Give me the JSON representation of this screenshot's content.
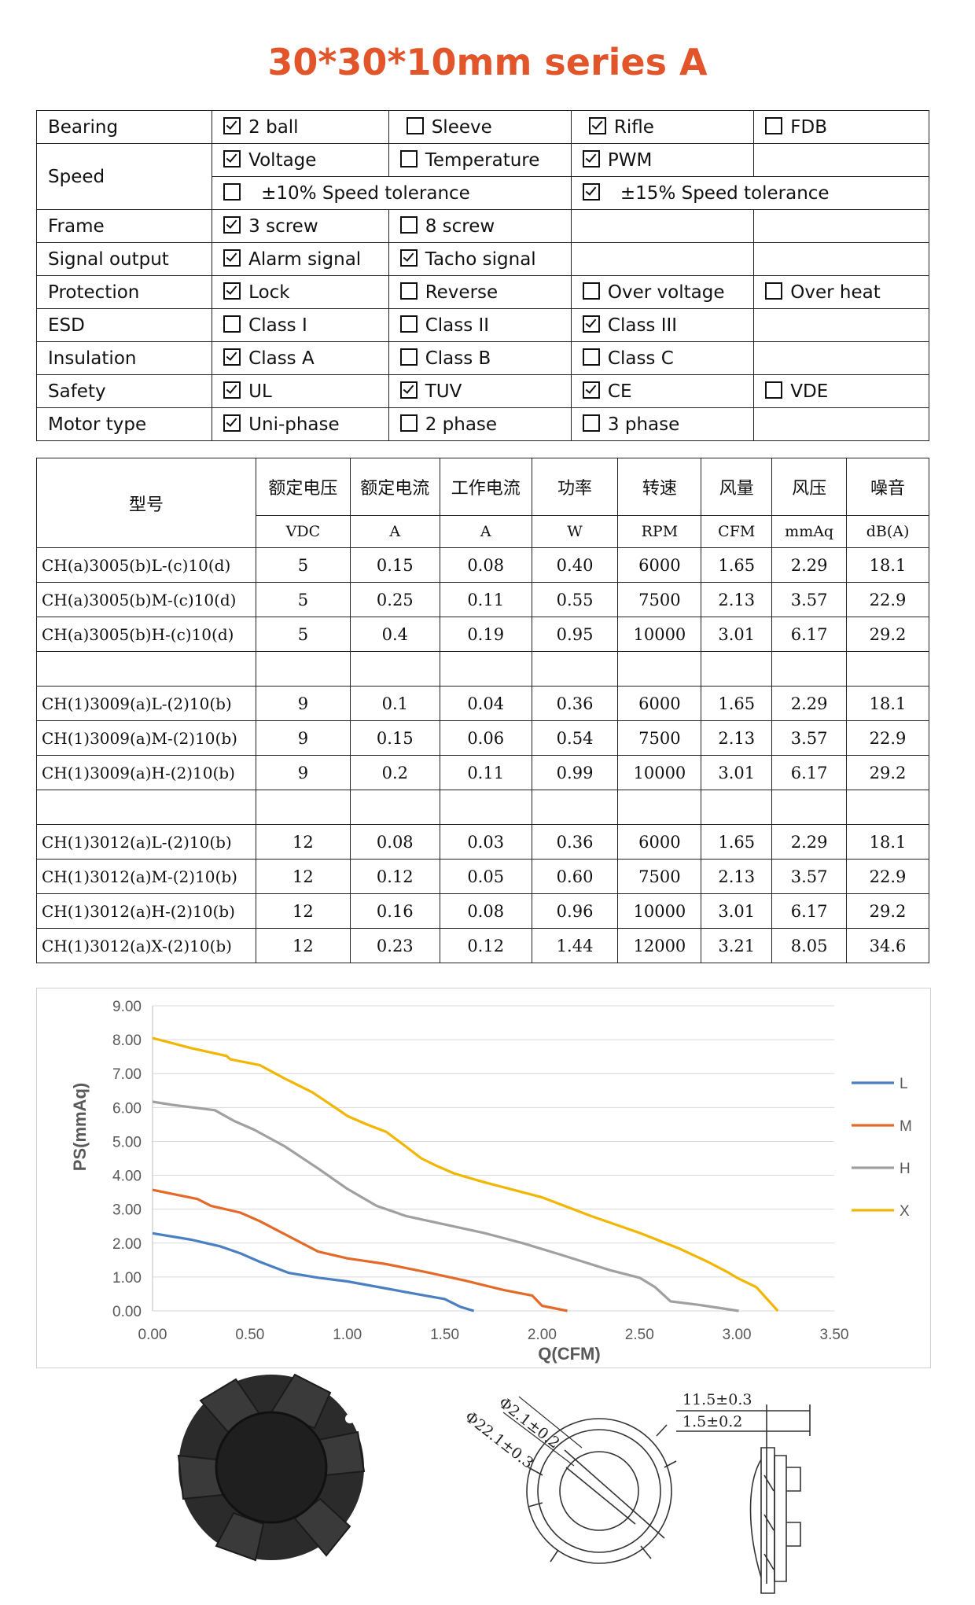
{
  "title": "30*30*10mm series A",
  "spec": {
    "bearing": {
      "label": "Bearing",
      "opts": [
        {
          "text": "2 ball",
          "checked": true
        },
        {
          "text": "Sleeve",
          "checked": false
        },
        {
          "text": "Rifle",
          "checked": true
        },
        {
          "text": "FDB",
          "checked": false
        }
      ]
    },
    "speed": {
      "label": "Speed",
      "row1": [
        {
          "text": "Voltage",
          "checked": true
        },
        {
          "text": "Temperature",
          "checked": false
        },
        {
          "text": "PWM",
          "checked": true
        }
      ],
      "row2": [
        {
          "text": "±10% Speed tolerance",
          "checked": false
        },
        {
          "text": "±15% Speed tolerance",
          "checked": true
        }
      ]
    },
    "frame": {
      "label": "Frame",
      "opts": [
        {
          "text": "3 screw",
          "checked": true
        },
        {
          "text": "8 screw",
          "checked": false
        }
      ]
    },
    "signal": {
      "label": "Signal output",
      "opts": [
        {
          "text": "Alarm signal",
          "checked": true
        },
        {
          "text": "Tacho signal",
          "checked": true
        }
      ]
    },
    "protection": {
      "label": "Protection",
      "opts": [
        {
          "text": "Lock",
          "checked": true
        },
        {
          "text": "Reverse",
          "checked": false
        },
        {
          "text": "Over voltage",
          "checked": false
        },
        {
          "text": "Over heat",
          "checked": false
        }
      ]
    },
    "esd": {
      "label": "ESD",
      "opts": [
        {
          "text": "Class I",
          "checked": false
        },
        {
          "text": "Class II",
          "checked": false
        },
        {
          "text": "Class III",
          "checked": true
        }
      ]
    },
    "insulation": {
      "label": "Insulation",
      "opts": [
        {
          "text": "Class A",
          "checked": true
        },
        {
          "text": "Class B",
          "checked": false
        },
        {
          "text": "Class C",
          "checked": false
        }
      ]
    },
    "safety": {
      "label": "Safety",
      "opts": [
        {
          "text": "UL",
          "checked": true
        },
        {
          "text": "TUV",
          "checked": true
        },
        {
          "text": "CE",
          "checked": true
        },
        {
          "text": "VDE",
          "checked": false
        }
      ]
    },
    "motor": {
      "label": "Motor type",
      "opts": [
        {
          "text": "Uni-phase",
          "checked": true
        },
        {
          "text": "2 phase",
          "checked": false
        },
        {
          "text": "3 phase",
          "checked": false
        }
      ]
    }
  },
  "models": {
    "model_header": "型号",
    "headers": [
      "额定电压",
      "额定电流",
      "工作电流",
      "功率",
      "转速",
      "风量",
      "风压",
      "噪音"
    ],
    "units": [
      "VDC",
      "A",
      "A",
      "W",
      "RPM",
      "CFM",
      "mmAq",
      "dB(A)"
    ],
    "groups": [
      [
        [
          "CH(a)3005(b)L-(c)10(d)",
          "5",
          "0.15",
          "0.08",
          "0.40",
          "6000",
          "1.65",
          "2.29",
          "18.1"
        ],
        [
          "CH(a)3005(b)M-(c)10(d)",
          "5",
          "0.25",
          "0.11",
          "0.55",
          "7500",
          "2.13",
          "3.57",
          "22.9"
        ],
        [
          "CH(a)3005(b)H-(c)10(d)",
          "5",
          "0.4",
          "0.19",
          "0.95",
          "10000",
          "3.01",
          "6.17",
          "29.2"
        ]
      ],
      [
        [
          "CH(1)3009(a)L-(2)10(b)",
          "9",
          "0.1",
          "0.04",
          "0.36",
          "6000",
          "1.65",
          "2.29",
          "18.1"
        ],
        [
          "CH(1)3009(a)M-(2)10(b)",
          "9",
          "0.15",
          "0.06",
          "0.54",
          "7500",
          "2.13",
          "3.57",
          "22.9"
        ],
        [
          "CH(1)3009(a)H-(2)10(b)",
          "9",
          "0.2",
          "0.11",
          "0.99",
          "10000",
          "3.01",
          "6.17",
          "29.2"
        ]
      ],
      [
        [
          "CH(1)3012(a)L-(2)10(b)",
          "12",
          "0.08",
          "0.03",
          "0.36",
          "6000",
          "1.65",
          "2.29",
          "18.1"
        ],
        [
          "CH(1)3012(a)M-(2)10(b)",
          "12",
          "0.12",
          "0.05",
          "0.60",
          "7500",
          "2.13",
          "3.57",
          "22.9"
        ],
        [
          "CH(1)3012(a)H-(2)10(b)",
          "12",
          "0.16",
          "0.08",
          "0.96",
          "10000",
          "3.01",
          "6.17",
          "29.2"
        ],
        [
          "CH(1)3012(a)X-(2)10(b)",
          "12",
          "0.23",
          "0.12",
          "1.44",
          "12000",
          "3.21",
          "8.05",
          "34.6"
        ]
      ]
    ]
  },
  "chart_data": {
    "type": "line",
    "xlabel": "Q(CFM)",
    "ylabel": "PS(mmAq)",
    "xlim": [
      0,
      3.5
    ],
    "ylim": [
      0,
      9
    ],
    "xticks": [
      "0.00",
      "0.50",
      "1.00",
      "1.50",
      "2.00",
      "2.50",
      "3.00",
      "3.50"
    ],
    "yticks": [
      "0.00",
      "1.00",
      "2.00",
      "3.00",
      "4.00",
      "5.00",
      "6.00",
      "7.00",
      "8.00",
      "9.00"
    ],
    "grid": "horizontal",
    "legend": "right",
    "series": [
      {
        "name": "L",
        "color": "#4a7fc1",
        "x": [
          0,
          0.2,
          0.35,
          0.45,
          0.55,
          0.7,
          0.85,
          1.0,
          1.2,
          1.4,
          1.5,
          1.58,
          1.65
        ],
        "y": [
          2.29,
          2.1,
          1.9,
          1.7,
          1.45,
          1.12,
          0.98,
          0.87,
          0.66,
          0.45,
          0.35,
          0.12,
          0
        ]
      },
      {
        "name": "M",
        "color": "#e46a2a",
        "x": [
          0,
          0.23,
          0.3,
          0.45,
          0.55,
          0.7,
          0.85,
          1.0,
          1.2,
          1.4,
          1.6,
          1.8,
          1.95,
          2.0,
          2.13
        ],
        "y": [
          3.57,
          3.3,
          3.1,
          2.9,
          2.65,
          2.2,
          1.75,
          1.55,
          1.38,
          1.15,
          0.9,
          0.62,
          0.45,
          0.15,
          0
        ]
      },
      {
        "name": "H",
        "color": "#a0a0a0",
        "x": [
          0,
          0.1,
          0.32,
          0.42,
          0.52,
          0.68,
          0.85,
          1.0,
          1.15,
          1.3,
          1.5,
          1.7,
          1.9,
          2.1,
          2.35,
          2.5,
          2.58,
          2.66,
          2.8,
          3.01
        ],
        "y": [
          6.17,
          6.08,
          5.92,
          5.6,
          5.35,
          4.85,
          4.2,
          3.6,
          3.1,
          2.8,
          2.55,
          2.3,
          2.0,
          1.65,
          1.2,
          0.98,
          0.7,
          0.28,
          0.18,
          0
        ]
      },
      {
        "name": "X",
        "color": "#f2b600",
        "x": [
          0,
          0.2,
          0.38,
          0.4,
          0.55,
          0.68,
          0.82,
          0.95,
          1.0,
          1.1,
          1.2,
          1.3,
          1.38,
          1.45,
          1.55,
          1.7,
          2.0,
          2.25,
          2.5,
          2.7,
          2.85,
          2.95,
          3.0,
          3.1,
          3.21
        ],
        "y": [
          8.05,
          7.75,
          7.52,
          7.42,
          7.25,
          6.85,
          6.45,
          5.95,
          5.75,
          5.5,
          5.28,
          4.85,
          4.5,
          4.3,
          4.05,
          3.8,
          3.35,
          2.8,
          2.3,
          1.85,
          1.45,
          1.15,
          0.98,
          0.7,
          0
        ]
      }
    ]
  },
  "drawings": {
    "dim_inner_dia": "Φ2.1±0.2",
    "dim_outer_dia": "Φ22.1±0.3",
    "dim_height": "11.5±0.3",
    "dim_step": "1.5±0.2"
  }
}
